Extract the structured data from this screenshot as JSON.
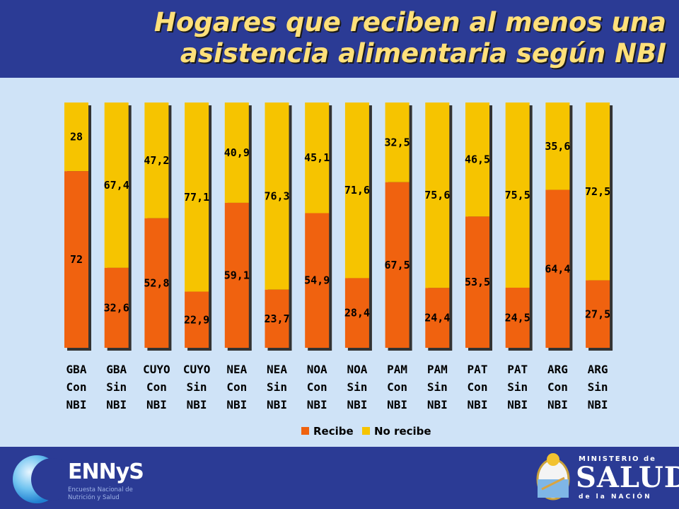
{
  "title": "Hogares que reciben al menos una asistencia alimentaria según NBI",
  "colors": {
    "recibe": "#f0620f",
    "no_recibe": "#f6c400",
    "header": "#2b3b95",
    "background": "#cfe3f7"
  },
  "chart_data": {
    "type": "bar",
    "stacked": true,
    "categories": [
      [
        "GBA",
        "Con",
        "NBI"
      ],
      [
        "GBA",
        "Sin",
        "NBI"
      ],
      [
        "CUYO",
        "Con",
        "NBI"
      ],
      [
        "CUYO",
        "Sin",
        "NBI"
      ],
      [
        "NEA",
        "Con",
        "NBI"
      ],
      [
        "NEA",
        "Sin",
        "NBI"
      ],
      [
        "NOA",
        "Con",
        "NBI"
      ],
      [
        "NOA",
        "Sin",
        "NBI"
      ],
      [
        "PAM",
        "Con",
        "NBI"
      ],
      [
        "PAM",
        "Sin",
        "NBI"
      ],
      [
        "PAT",
        "Con",
        "NBI"
      ],
      [
        "PAT",
        "Sin",
        "NBI"
      ],
      [
        "ARG",
        "Con",
        "NBI"
      ],
      [
        "ARG",
        "Sin",
        "NBI"
      ]
    ],
    "series": [
      {
        "name": "Recibe",
        "values": [
          72,
          32.6,
          52.8,
          22.9,
          59.1,
          23.7,
          54.9,
          28.4,
          67.5,
          24.4,
          53.5,
          24.5,
          64.4,
          27.5
        ],
        "labels": [
          "72",
          "32,6",
          "52,8",
          "22,9",
          "59,1",
          "23,7",
          "54,9",
          "28,4",
          "67,5",
          "24,4",
          "53,5",
          "24,5",
          "64,4",
          "27,5"
        ]
      },
      {
        "name": "No recibe",
        "values": [
          28,
          67.4,
          47.2,
          77.1,
          40.9,
          76.3,
          45.1,
          71.6,
          32.5,
          75.6,
          46.5,
          75.5,
          35.6,
          72.5
        ],
        "labels": [
          "28",
          "67,4",
          "47,2",
          "77,1",
          "40,9",
          "76,3",
          "45,1",
          "71,6",
          "32,5",
          "75,6",
          "46,5",
          "75,5",
          "35,6",
          "72,5"
        ]
      }
    ],
    "ylim": [
      0,
      100
    ],
    "legend_position": "bottom"
  },
  "logos": {
    "left": {
      "name": "ENNyS",
      "subtitle": "Encuesta Nacional de Nutrición y Salud"
    },
    "right": {
      "top": "MINISTERIO de",
      "main": "SALUD",
      "bottom": "de la NACIÓN"
    }
  }
}
